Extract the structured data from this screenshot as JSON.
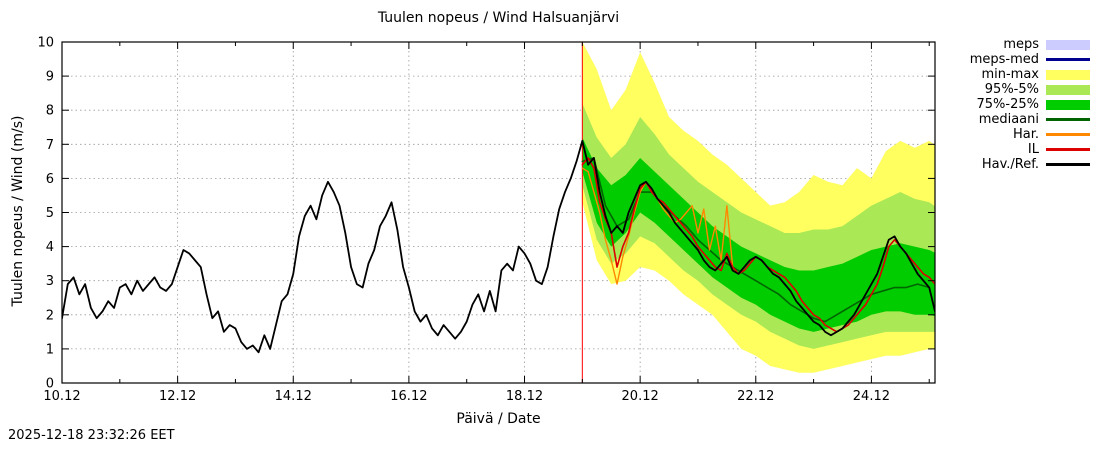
{
  "chart_data": {
    "type": "line",
    "title": "Tuulen nopeus / Wind  Halsuanjärvi",
    "xlabel": "Päivä / Date",
    "ylabel": "Tuulen nopeus / Wind (m/s)",
    "timestamp": "2025-12-18 23:32:26 EET",
    "xlim": [
      10,
      25.1
    ],
    "ylim": [
      0,
      10
    ],
    "grid": true,
    "x_ticks": [
      {
        "v": 10,
        "label": "10.12"
      },
      {
        "v": 12,
        "label": "12.12"
      },
      {
        "v": 14,
        "label": "14.12"
      },
      {
        "v": 16,
        "label": "16.12"
      },
      {
        "v": 18,
        "label": "18.12"
      },
      {
        "v": 20,
        "label": "20.12"
      },
      {
        "v": 22,
        "label": "22.12"
      },
      {
        "v": 24,
        "label": "24.12"
      }
    ],
    "x_minor_ticks": [
      11,
      13,
      15,
      17,
      19,
      21,
      23,
      25
    ],
    "y_ticks": [
      {
        "v": 0,
        "label": "0"
      },
      {
        "v": 1,
        "label": "1"
      },
      {
        "v": 2,
        "label": "2"
      },
      {
        "v": 3,
        "label": "3"
      },
      {
        "v": 4,
        "label": "4"
      },
      {
        "v": 5,
        "label": "5"
      },
      {
        "v": 6,
        "label": "6"
      },
      {
        "v": 7,
        "label": "7"
      },
      {
        "v": 8,
        "label": "8"
      },
      {
        "v": 9,
        "label": "9"
      },
      {
        "v": 10,
        "label": "10"
      }
    ],
    "forecast_start_x": 19.0,
    "forecast_line_color": "#ff0000",
    "bands": [
      {
        "name": "min-max",
        "color": "#ffff60",
        "x0": 19.0,
        "dx": 0.25,
        "upper": [
          10.0,
          9.2,
          8.0,
          8.6,
          9.7,
          8.8,
          7.8,
          7.4,
          7.1,
          6.7,
          6.4,
          6.0,
          5.6,
          5.2,
          5.3,
          5.6,
          6.1,
          5.9,
          5.8,
          6.3,
          6.0,
          6.8,
          7.1,
          6.9,
          7.1,
          6.8
        ],
        "lower": [
          5.3,
          3.6,
          2.9,
          3.0,
          3.4,
          3.3,
          3.0,
          2.6,
          2.3,
          2.0,
          1.5,
          1.0,
          0.8,
          0.5,
          0.4,
          0.3,
          0.3,
          0.4,
          0.5,
          0.6,
          0.7,
          0.8,
          0.8,
          0.9,
          1.0,
          1.0
        ]
      },
      {
        "name": "95%-5%",
        "color": "#aae855",
        "x0": 19.0,
        "dx": 0.25,
        "upper": [
          8.2,
          7.2,
          6.6,
          7.0,
          7.8,
          7.3,
          6.7,
          6.3,
          5.9,
          5.6,
          5.3,
          5.0,
          4.8,
          4.6,
          4.4,
          4.4,
          4.5,
          4.5,
          4.6,
          4.9,
          5.2,
          5.4,
          5.6,
          5.4,
          5.3,
          5.0
        ],
        "lower": [
          5.8,
          4.2,
          3.5,
          3.8,
          4.3,
          4.1,
          3.7,
          3.3,
          3.0,
          2.6,
          2.3,
          2.0,
          1.8,
          1.5,
          1.3,
          1.1,
          1.0,
          1.1,
          1.2,
          1.3,
          1.4,
          1.5,
          1.5,
          1.5,
          1.5,
          1.5
        ]
      },
      {
        "name": "75%-25%",
        "color": "#00cc00",
        "x0": 19.0,
        "dx": 0.25,
        "upper": [
          7.2,
          6.3,
          5.8,
          6.1,
          6.6,
          6.2,
          5.8,
          5.4,
          5.0,
          4.6,
          4.3,
          4.0,
          3.8,
          3.6,
          3.4,
          3.3,
          3.3,
          3.4,
          3.5,
          3.7,
          3.9,
          4.0,
          4.1,
          4.0,
          3.9,
          3.7
        ],
        "lower": [
          6.2,
          4.7,
          4.0,
          4.4,
          5.0,
          4.7,
          4.3,
          3.9,
          3.5,
          3.1,
          2.8,
          2.5,
          2.3,
          2.0,
          1.8,
          1.6,
          1.5,
          1.6,
          1.7,
          1.8,
          2.0,
          2.1,
          2.1,
          2.0,
          2.0,
          1.9
        ]
      }
    ],
    "series": [
      {
        "name": "mediaani",
        "color": "#006400",
        "width": 1.6,
        "x0": 19.0,
        "dx": 0.2,
        "y": [
          6.5,
          6.6,
          5.2,
          4.6,
          4.8,
          5.6,
          5.6,
          5.2,
          4.9,
          4.6,
          4.2,
          3.9,
          3.6,
          3.4,
          3.2,
          3.0,
          2.8,
          2.6,
          2.3,
          2.1,
          1.9,
          1.8,
          2.0,
          2.2,
          2.4,
          2.6,
          2.7,
          2.8,
          2.8,
          2.9,
          2.8
        ]
      },
      {
        "name": "Har.",
        "color": "#ff8800",
        "width": 1.4,
        "x0": 19.0,
        "dx": 0.1,
        "y": [
          6.3,
          6.2,
          5.6,
          5.0,
          4.2,
          3.6,
          2.9,
          3.7,
          4.3,
          5.0,
          5.6,
          5.9,
          5.6,
          5.4,
          5.1,
          4.9,
          4.7,
          4.8,
          5.0,
          5.2,
          4.4,
          5.1,
          3.9,
          4.6,
          3.6,
          5.2,
          3.4
        ]
      },
      {
        "name": "IL",
        "color": "#dd0000",
        "width": 1.6,
        "x0": 19.0,
        "dx": 0.1,
        "y": [
          6.4,
          6.6,
          6.3,
          5.3,
          4.8,
          4.4,
          3.4,
          4.0,
          4.4,
          5.1,
          5.7,
          5.9,
          5.6,
          5.4,
          5.3,
          5.1,
          4.9,
          4.7,
          4.5,
          4.3,
          4.0,
          3.8,
          3.6,
          3.4,
          3.3,
          3.8,
          3.4,
          3.2,
          3.3,
          3.5,
          3.7,
          3.6,
          3.4,
          3.3,
          3.2,
          3.1,
          2.9,
          2.7,
          2.4,
          2.2,
          2.0,
          1.9,
          1.7,
          1.6,
          1.5,
          1.6,
          1.7,
          1.9,
          2.1,
          2.3,
          2.6,
          2.9,
          3.4,
          4.0,
          4.2,
          4.0,
          3.8,
          3.6,
          3.4,
          3.2,
          3.1,
          2.9
        ]
      },
      {
        "name": "Hav./Ref.",
        "color": "#000000",
        "width": 1.8,
        "x0": 10.0,
        "dx": 0.1,
        "y": [
          1.9,
          2.9,
          3.1,
          2.6,
          2.9,
          2.2,
          1.9,
          2.1,
          2.4,
          2.2,
          2.8,
          2.9,
          2.6,
          3.0,
          2.7,
          2.9,
          3.1,
          2.8,
          2.7,
          2.9,
          3.4,
          3.9,
          3.8,
          3.6,
          3.4,
          2.6,
          1.9,
          2.1,
          1.5,
          1.7,
          1.6,
          1.2,
          1.0,
          1.1,
          0.9,
          1.4,
          1.0,
          1.7,
          2.4,
          2.6,
          3.2,
          4.3,
          4.9,
          5.2,
          4.8,
          5.5,
          5.9,
          5.6,
          5.2,
          4.4,
          3.4,
          2.9,
          2.8,
          3.5,
          3.9,
          4.6,
          4.9,
          5.3,
          4.5,
          3.4,
          2.8,
          2.1,
          1.8,
          2.0,
          1.6,
          1.4,
          1.7,
          1.5,
          1.3,
          1.5,
          1.8,
          2.3,
          2.6,
          2.1,
          2.7,
          2.1,
          3.3,
          3.5,
          3.3,
          4.0,
          3.8,
          3.5,
          3.0,
          2.9,
          3.4,
          4.3,
          5.1,
          5.6,
          6.0,
          6.5,
          7.1,
          6.4,
          6.6,
          5.6,
          4.9,
          4.4,
          4.6,
          4.4,
          5.0,
          5.4,
          5.8,
          5.9,
          5.7,
          5.4,
          5.2,
          5.0,
          4.7,
          4.5,
          4.3,
          4.1,
          3.9,
          3.6,
          3.4,
          3.3,
          3.5,
          3.7,
          3.3,
          3.2,
          3.4,
          3.6,
          3.7,
          3.6,
          3.4,
          3.2,
          3.1,
          2.9,
          2.7,
          2.4,
          2.2,
          2.0,
          1.8,
          1.7,
          1.5,
          1.4,
          1.5,
          1.6,
          1.8,
          2.0,
          2.3,
          2.6,
          2.9,
          3.2,
          3.7,
          4.2,
          4.3,
          4.0,
          3.8,
          3.5,
          3.2,
          3.0,
          2.8,
          2.1
        ]
      }
    ],
    "legend": {
      "items": [
        {
          "label": "meps",
          "color": "#ccccff",
          "swatch": "band"
        },
        {
          "label": "meps-med",
          "color": "#000090",
          "swatch": "line"
        },
        {
          "label": "min-max",
          "color": "#ffff60",
          "swatch": "band"
        },
        {
          "label": "95%-5%",
          "color": "#aae855",
          "swatch": "band"
        },
        {
          "label": "75%-25%",
          "color": "#00cc00",
          "swatch": "band"
        },
        {
          "label": "mediaani",
          "color": "#006400",
          "swatch": "line"
        },
        {
          "label": "Har.",
          "color": "#ff8800",
          "swatch": "line"
        },
        {
          "label": "IL",
          "color": "#dd0000",
          "swatch": "line"
        },
        {
          "label": "Hav./Ref.",
          "color": "#000000",
          "swatch": "line"
        }
      ]
    },
    "colors": {
      "grid": "#9a9a9a",
      "border": "#000000"
    }
  }
}
